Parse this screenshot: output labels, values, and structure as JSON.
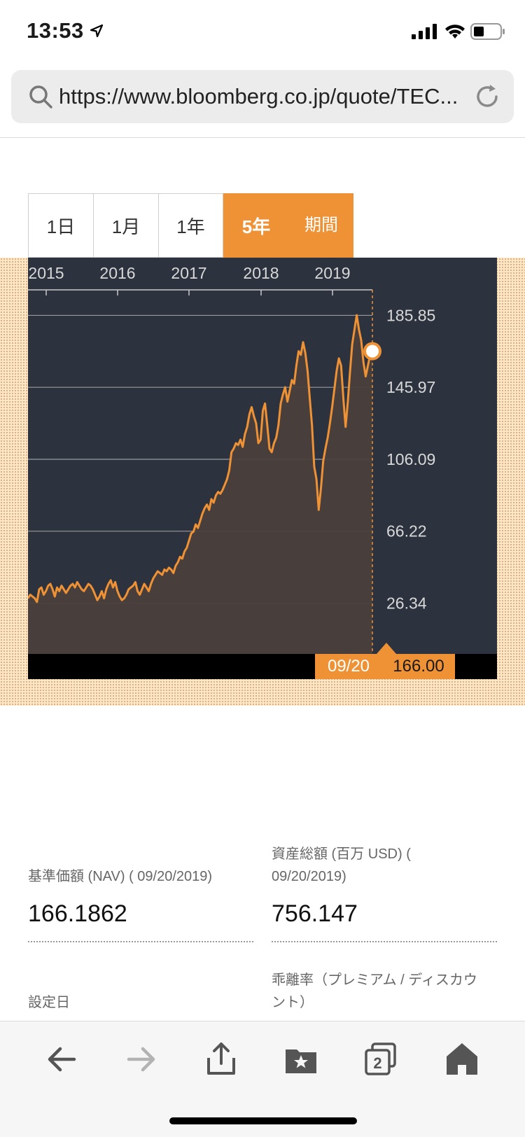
{
  "status_bar": {
    "time": "13:53"
  },
  "url_bar": {
    "url": "https://www.bloomberg.co.jp/quote/TEC..."
  },
  "tabs": [
    {
      "label": "1日",
      "active": false
    },
    {
      "label": "1月",
      "active": false
    },
    {
      "label": "1年",
      "active": false
    },
    {
      "label": "5年",
      "active": true
    },
    {
      "label": "期間",
      "active": false
    }
  ],
  "chart_data": {
    "type": "area",
    "x_tick_labels": [
      "2015",
      "2016",
      "2017",
      "2018",
      "2019"
    ],
    "y_tick_labels": [
      "185.85",
      "145.97",
      "106.09",
      "66.22",
      "26.34"
    ],
    "ylim": [
      10.6,
      200
    ],
    "series": [
      {
        "values": [
          29,
          31,
          30,
          29,
          27,
          34,
          35,
          31,
          33,
          36,
          37,
          34,
          30,
          35,
          33,
          36,
          34,
          32,
          34,
          36,
          37,
          35,
          38,
          36,
          34,
          33,
          35,
          37,
          36,
          34,
          31,
          28,
          30,
          33,
          29,
          34,
          37,
          39,
          35,
          38,
          33,
          30,
          28,
          29,
          31,
          34,
          35,
          36,
          38,
          33,
          31,
          34,
          37,
          35,
          33,
          37,
          40,
          42,
          44,
          43,
          42,
          45,
          44,
          46,
          45,
          43,
          47,
          49,
          52,
          51,
          55,
          57,
          61,
          65,
          66,
          70,
          68,
          72,
          76,
          79,
          81,
          78,
          84,
          82,
          86,
          88,
          87,
          89,
          92,
          95,
          100,
          110,
          112,
          115,
          114,
          117,
          113,
          120,
          124,
          131,
          135,
          130,
          126,
          115,
          117,
          133,
          137,
          125,
          112,
          110,
          115,
          118,
          125,
          137,
          142,
          146,
          138,
          144,
          150,
          148,
          158,
          166,
          164,
          171,
          165,
          155,
          140,
          125,
          102,
          95,
          78,
          90,
          105,
          112,
          118,
          126,
          135,
          145,
          155,
          162,
          158,
          140,
          124,
          138,
          155,
          170,
          178,
          186,
          178,
          172,
          160,
          152,
          158,
          164,
          166
        ]
      }
    ],
    "cursor": {
      "date": "09/20",
      "value": "166.00"
    },
    "grid": true,
    "colors": {
      "line": "#ef9135",
      "fill": "#4a3f3b",
      "background": "#2d333e"
    }
  },
  "stats": {
    "nav_label": "基準価額 (NAV) ( 09/20/2019)",
    "nav_value": "166.1862",
    "assets_label_line1": "資産総額 (百万 USD) (",
    "assets_label_line2": "09/20/2019)",
    "assets_value": "756.147",
    "inception_label": "設定日",
    "premium_label_line1": "乖離率（プレミアム / ディスカウ",
    "premium_label_line2": "ント）"
  },
  "toolbar": {
    "icons": [
      "back-arrow-icon",
      "forward-arrow-icon",
      "share-icon",
      "bookmarks-icon",
      "tabs-icon",
      "home-icon"
    ],
    "tab_count": "2"
  }
}
